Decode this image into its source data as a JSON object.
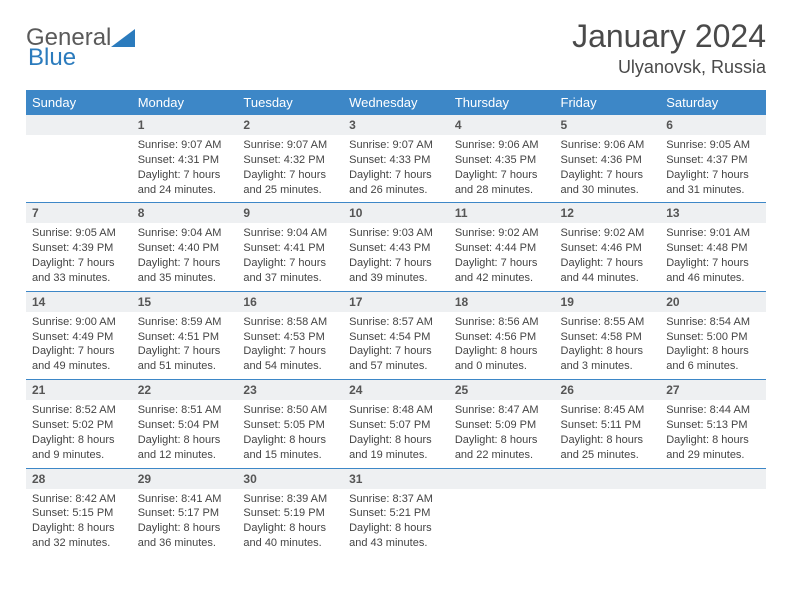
{
  "logo": {
    "word1": "General",
    "word2": "Blue"
  },
  "title": "January 2024",
  "location": "Ulyanovsk, Russia",
  "weekdays": [
    "Sunday",
    "Monday",
    "Tuesday",
    "Wednesday",
    "Thursday",
    "Friday",
    "Saturday"
  ],
  "style": {
    "header_bg": "#3d87c7",
    "header_fg": "#ffffff",
    "daynum_bg": "#eef0f2",
    "border_color": "#3d87c7",
    "body_font_size": 11,
    "header_font_size": 13
  },
  "weeks": [
    [
      null,
      {
        "n": "1",
        "sr": "9:07 AM",
        "ss": "4:31 PM",
        "dl": "7 hours and 24 minutes."
      },
      {
        "n": "2",
        "sr": "9:07 AM",
        "ss": "4:32 PM",
        "dl": "7 hours and 25 minutes."
      },
      {
        "n": "3",
        "sr": "9:07 AM",
        "ss": "4:33 PM",
        "dl": "7 hours and 26 minutes."
      },
      {
        "n": "4",
        "sr": "9:06 AM",
        "ss": "4:35 PM",
        "dl": "7 hours and 28 minutes."
      },
      {
        "n": "5",
        "sr": "9:06 AM",
        "ss": "4:36 PM",
        "dl": "7 hours and 30 minutes."
      },
      {
        "n": "6",
        "sr": "9:05 AM",
        "ss": "4:37 PM",
        "dl": "7 hours and 31 minutes."
      }
    ],
    [
      {
        "n": "7",
        "sr": "9:05 AM",
        "ss": "4:39 PM",
        "dl": "7 hours and 33 minutes."
      },
      {
        "n": "8",
        "sr": "9:04 AM",
        "ss": "4:40 PM",
        "dl": "7 hours and 35 minutes."
      },
      {
        "n": "9",
        "sr": "9:04 AM",
        "ss": "4:41 PM",
        "dl": "7 hours and 37 minutes."
      },
      {
        "n": "10",
        "sr": "9:03 AM",
        "ss": "4:43 PM",
        "dl": "7 hours and 39 minutes."
      },
      {
        "n": "11",
        "sr": "9:02 AM",
        "ss": "4:44 PM",
        "dl": "7 hours and 42 minutes."
      },
      {
        "n": "12",
        "sr": "9:02 AM",
        "ss": "4:46 PM",
        "dl": "7 hours and 44 minutes."
      },
      {
        "n": "13",
        "sr": "9:01 AM",
        "ss": "4:48 PM",
        "dl": "7 hours and 46 minutes."
      }
    ],
    [
      {
        "n": "14",
        "sr": "9:00 AM",
        "ss": "4:49 PM",
        "dl": "7 hours and 49 minutes."
      },
      {
        "n": "15",
        "sr": "8:59 AM",
        "ss": "4:51 PM",
        "dl": "7 hours and 51 minutes."
      },
      {
        "n": "16",
        "sr": "8:58 AM",
        "ss": "4:53 PM",
        "dl": "7 hours and 54 minutes."
      },
      {
        "n": "17",
        "sr": "8:57 AM",
        "ss": "4:54 PM",
        "dl": "7 hours and 57 minutes."
      },
      {
        "n": "18",
        "sr": "8:56 AM",
        "ss": "4:56 PM",
        "dl": "8 hours and 0 minutes."
      },
      {
        "n": "19",
        "sr": "8:55 AM",
        "ss": "4:58 PM",
        "dl": "8 hours and 3 minutes."
      },
      {
        "n": "20",
        "sr": "8:54 AM",
        "ss": "5:00 PM",
        "dl": "8 hours and 6 minutes."
      }
    ],
    [
      {
        "n": "21",
        "sr": "8:52 AM",
        "ss": "5:02 PM",
        "dl": "8 hours and 9 minutes."
      },
      {
        "n": "22",
        "sr": "8:51 AM",
        "ss": "5:04 PM",
        "dl": "8 hours and 12 minutes."
      },
      {
        "n": "23",
        "sr": "8:50 AM",
        "ss": "5:05 PM",
        "dl": "8 hours and 15 minutes."
      },
      {
        "n": "24",
        "sr": "8:48 AM",
        "ss": "5:07 PM",
        "dl": "8 hours and 19 minutes."
      },
      {
        "n": "25",
        "sr": "8:47 AM",
        "ss": "5:09 PM",
        "dl": "8 hours and 22 minutes."
      },
      {
        "n": "26",
        "sr": "8:45 AM",
        "ss": "5:11 PM",
        "dl": "8 hours and 25 minutes."
      },
      {
        "n": "27",
        "sr": "8:44 AM",
        "ss": "5:13 PM",
        "dl": "8 hours and 29 minutes."
      }
    ],
    [
      {
        "n": "28",
        "sr": "8:42 AM",
        "ss": "5:15 PM",
        "dl": "8 hours and 32 minutes."
      },
      {
        "n": "29",
        "sr": "8:41 AM",
        "ss": "5:17 PM",
        "dl": "8 hours and 36 minutes."
      },
      {
        "n": "30",
        "sr": "8:39 AM",
        "ss": "5:19 PM",
        "dl": "8 hours and 40 minutes."
      },
      {
        "n": "31",
        "sr": "8:37 AM",
        "ss": "5:21 PM",
        "dl": "8 hours and 43 minutes."
      },
      null,
      null,
      null
    ]
  ],
  "labels": {
    "sunrise": "Sunrise: ",
    "sunset": "Sunset: ",
    "daylight": "Daylight: "
  }
}
